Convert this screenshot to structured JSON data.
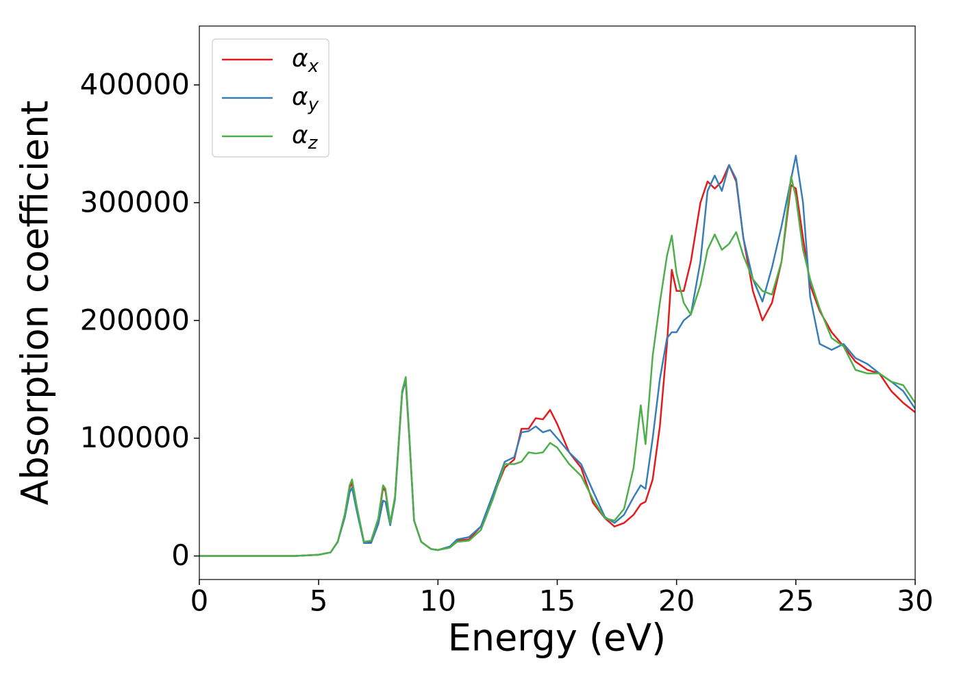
{
  "chart_data": {
    "type": "line",
    "xlabel": "Energy (eV)",
    "ylabel": "Absorption coefficient",
    "x": [
      0,
      2,
      4,
      5,
      5.5,
      5.8,
      6.1,
      6.3,
      6.4,
      6.6,
      6.9,
      7.2,
      7.5,
      7.7,
      7.8,
      8.0,
      8.2,
      8.5,
      8.65,
      8.8,
      9.0,
      9.3,
      9.7,
      10.0,
      10.5,
      10.8,
      11.3,
      11.8,
      12.3,
      12.8,
      13.2,
      13.5,
      13.8,
      14.1,
      14.4,
      14.7,
      15.0,
      15.5,
      16.0,
      16.5,
      17.0,
      17.4,
      17.8,
      18.2,
      18.5,
      18.7,
      19.0,
      19.3,
      19.6,
      19.8,
      20.0,
      20.3,
      20.6,
      21.0,
      21.3,
      21.6,
      21.9,
      22.2,
      22.5,
      22.8,
      23.2,
      23.6,
      24.0,
      24.4,
      24.8,
      25.0,
      25.3,
      25.6,
      26.0,
      26.5,
      27.0,
      27.5,
      28.0,
      28.5,
      29.0,
      29.5,
      30
    ],
    "series": [
      {
        "name": "αx",
        "color": "#e41a1c",
        "values": [
          0,
          0,
          0,
          1000,
          3000,
          12000,
          35000,
          58000,
          62000,
          40000,
          12000,
          12000,
          30000,
          58000,
          55000,
          28000,
          50000,
          140000,
          148000,
          100000,
          30000,
          12000,
          6000,
          5000,
          8000,
          13000,
          14000,
          25000,
          50000,
          75000,
          82000,
          108000,
          108000,
          117000,
          116000,
          124000,
          112000,
          88000,
          75000,
          45000,
          32000,
          25000,
          28000,
          35000,
          44000,
          46000,
          65000,
          110000,
          180000,
          243000,
          225000,
          225000,
          250000,
          300000,
          318000,
          312000,
          318000,
          332000,
          318000,
          270000,
          225000,
          200000,
          215000,
          250000,
          315000,
          312000,
          270000,
          230000,
          208000,
          190000,
          178000,
          165000,
          158000,
          155000,
          140000,
          130000,
          122000
        ]
      },
      {
        "name": "αy",
        "color": "#377eb8",
        "values": [
          0,
          0,
          0,
          1000,
          3000,
          12000,
          33000,
          54000,
          58000,
          38000,
          11000,
          11000,
          27000,
          47000,
          46000,
          26000,
          48000,
          138000,
          150000,
          102000,
          30000,
          12000,
          6000,
          5000,
          8000,
          14000,
          16000,
          25000,
          52000,
          80000,
          84000,
          105000,
          106000,
          110000,
          105000,
          107000,
          100000,
          88000,
          78000,
          55000,
          33000,
          28000,
          35000,
          50000,
          60000,
          57000,
          100000,
          150000,
          185000,
          190000,
          190000,
          200000,
          205000,
          250000,
          310000,
          323000,
          310000,
          332000,
          320000,
          270000,
          235000,
          216000,
          245000,
          280000,
          320000,
          340000,
          300000,
          220000,
          180000,
          175000,
          180000,
          168000,
          163000,
          155000,
          148000,
          140000,
          125000
        ]
      },
      {
        "name": "αz",
        "color": "#4daf4a",
        "values": [
          0,
          0,
          0,
          1000,
          3000,
          12000,
          36000,
          60000,
          65000,
          42000,
          12000,
          13000,
          32000,
          60000,
          57000,
          28000,
          50000,
          140000,
          152000,
          102000,
          30000,
          12000,
          6000,
          5000,
          7000,
          12000,
          13000,
          22000,
          48000,
          78000,
          78000,
          80000,
          88000,
          87000,
          88000,
          96000,
          92000,
          78000,
          68000,
          48000,
          32000,
          30000,
          40000,
          75000,
          128000,
          95000,
          170000,
          215000,
          255000,
          272000,
          240000,
          215000,
          205000,
          230000,
          260000,
          273000,
          260000,
          265000,
          275000,
          255000,
          235000,
          225000,
          222000,
          250000,
          322000,
          305000,
          260000,
          235000,
          210000,
          185000,
          178000,
          158000,
          155000,
          155000,
          148000,
          145000,
          130000
        ]
      }
    ],
    "xlim": [
      0,
      30
    ],
    "xticks": [
      0,
      5,
      10,
      15,
      20,
      25,
      30
    ],
    "ylim": [
      -20000,
      450000
    ],
    "yticks": [
      0,
      100000,
      200000,
      300000,
      400000
    ],
    "grid": false,
    "legend": "upper left"
  }
}
